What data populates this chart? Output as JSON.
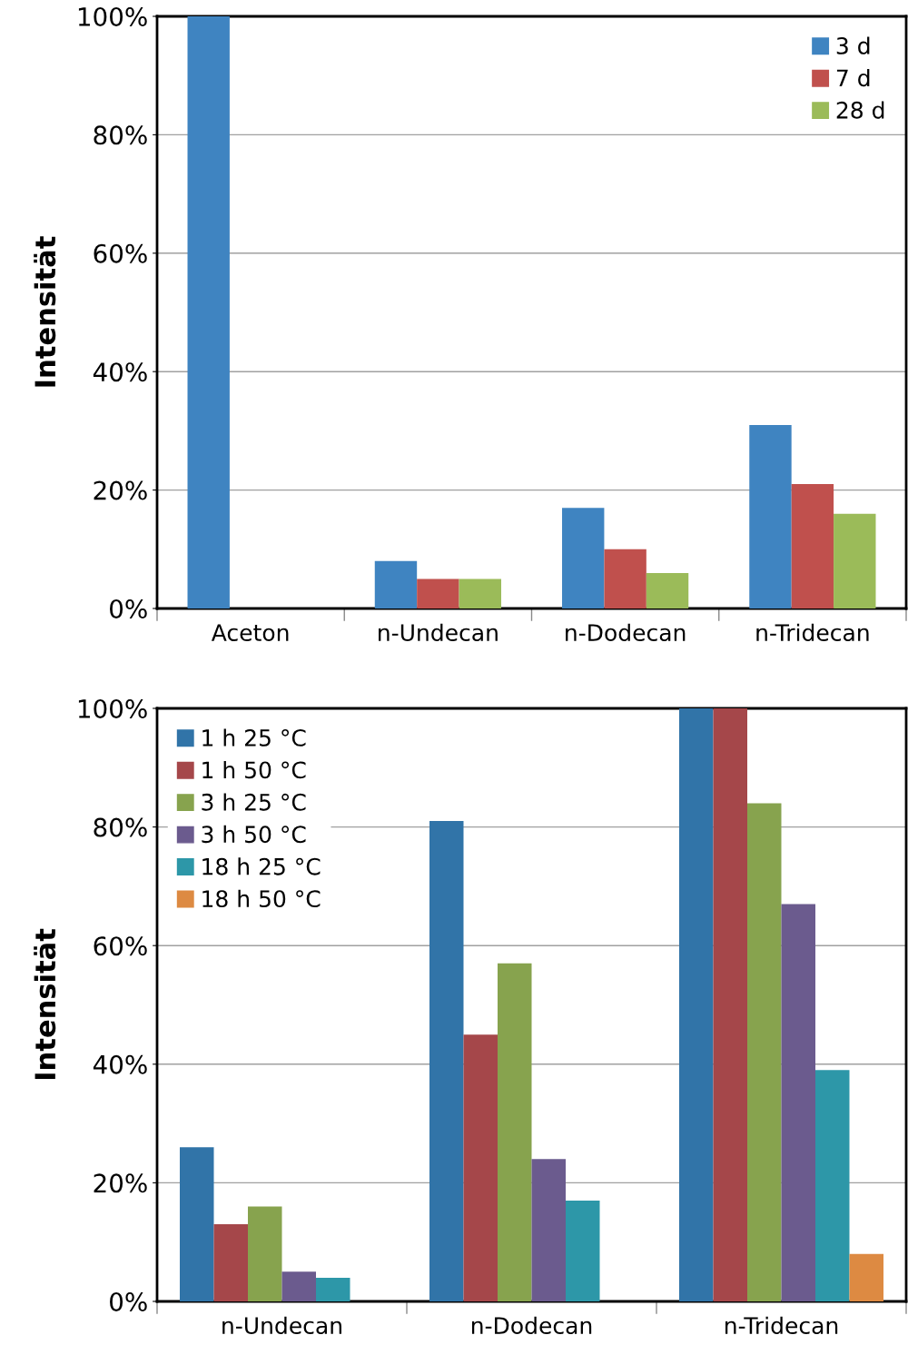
{
  "chart_data": [
    {
      "type": "bar",
      "ylabel": "Intensität",
      "categories": [
        "Aceton",
        "n-Undecan",
        "n-Dodecan",
        "n-Tridecan"
      ],
      "series": [
        {
          "name": "3 d",
          "color": "#3f84c1",
          "values": [
            100,
            8,
            17,
            31
          ]
        },
        {
          "name": "7 d",
          "color": "#c0504d",
          "values": [
            0,
            5,
            10,
            21
          ]
        },
        {
          "name": "28 d",
          "color": "#9bbb59",
          "values": [
            0,
            5,
            6,
            16
          ]
        }
      ],
      "ylim": [
        0,
        100
      ],
      "yticks": [
        {
          "value": 0,
          "label": "0%"
        },
        {
          "value": 20,
          "label": "20%"
        },
        {
          "value": 40,
          "label": "40%"
        },
        {
          "value": 60,
          "label": "60%"
        },
        {
          "value": 80,
          "label": "80%"
        },
        {
          "value": 100,
          "label": "100%"
        }
      ],
      "grid": "y",
      "legend": "top right"
    },
    {
      "type": "bar",
      "ylabel": "Intensität",
      "categories": [
        "n-Undecan",
        "n-Dodecan",
        "n-Tridecan"
      ],
      "series": [
        {
          "name": "1 h 25 °C",
          "color": "#3174a8",
          "values": [
            26,
            81,
            100
          ]
        },
        {
          "name": "1 h 50 °C",
          "color": "#a5474a",
          "values": [
            13,
            45,
            100
          ]
        },
        {
          "name": "3 h 25 °C",
          "color": "#87a34e",
          "values": [
            16,
            57,
            84
          ]
        },
        {
          "name": "3 h 50 °C",
          "color": "#6b5b8e",
          "values": [
            5,
            24,
            67
          ]
        },
        {
          "name": "18 h 25 °C",
          "color": "#2d97a8",
          "values": [
            4,
            17,
            39
          ]
        },
        {
          "name": "18 h 50 °C",
          "color": "#dd8a42",
          "values": [
            0,
            0,
            8
          ]
        }
      ],
      "ylim": [
        0,
        100
      ],
      "yticks": [
        {
          "value": 0,
          "label": "0%"
        },
        {
          "value": 20,
          "label": "20%"
        },
        {
          "value": 40,
          "label": "40%"
        },
        {
          "value": 60,
          "label": "60%"
        },
        {
          "value": 80,
          "label": "80%"
        },
        {
          "value": 100,
          "label": "100%"
        }
      ],
      "grid": "y",
      "legend": "top left"
    }
  ]
}
